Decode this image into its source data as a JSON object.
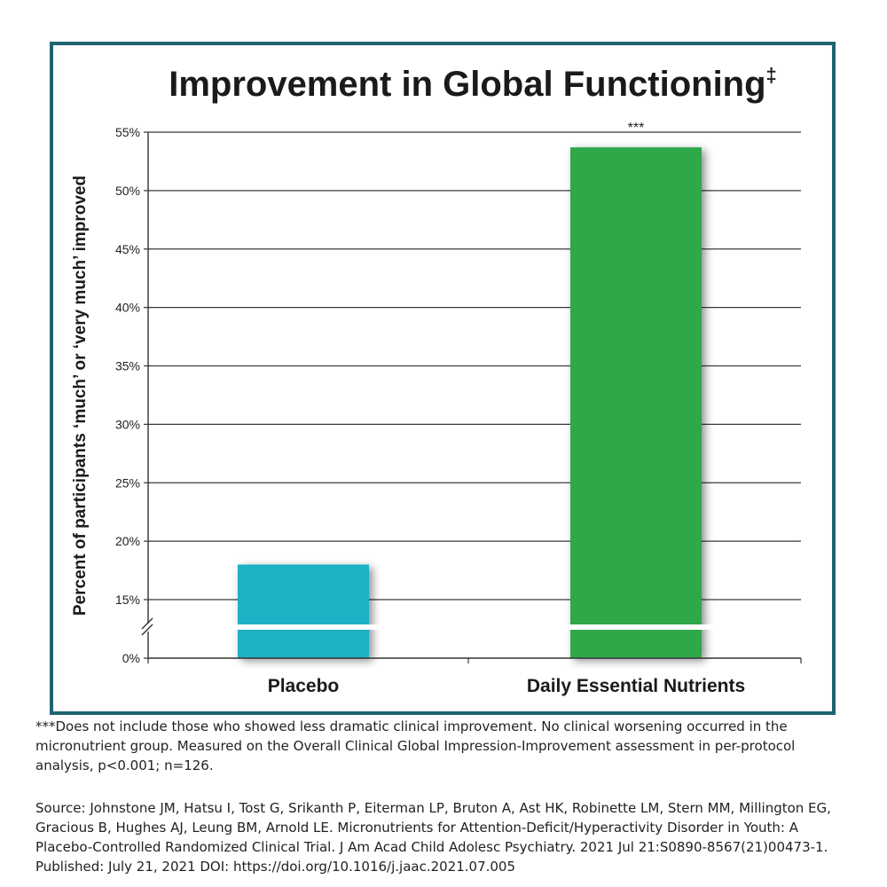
{
  "chart_data": {
    "type": "bar",
    "title": "Improvement in Global Functioning",
    "title_mark": "‡",
    "ylabel": "Percent of participants ‘much’ or ‘very much’ improved",
    "xlabel": "",
    "categories": [
      "Placebo",
      "Daily Essential Nutrients"
    ],
    "values": [
      18,
      53.7
    ],
    "colors": [
      "#1fb1c4",
      "#2ea84a"
    ],
    "bar_annotations": [
      "",
      "***"
    ],
    "y_ticks": [
      {
        "value": 0,
        "label": "0%"
      },
      {
        "value": 15,
        "label": "15%"
      },
      {
        "value": 20,
        "label": "20%"
      },
      {
        "value": 25,
        "label": "25%"
      },
      {
        "value": 30,
        "label": "30%"
      },
      {
        "value": 35,
        "label": "35%"
      },
      {
        "value": 40,
        "label": "40%"
      },
      {
        "value": 45,
        "label": "45%"
      },
      {
        "value": 50,
        "label": "50%"
      },
      {
        "value": 55,
        "label": "55%"
      }
    ],
    "ylim": [
      0,
      55
    ],
    "axis_break": true,
    "grid": true,
    "frame_color": "#1f6470"
  },
  "footnote": "***Does not include those who showed less dramatic clinical improvement. No clinical worsening occurred in the micronutrient group. Measured on the Overall Clinical Global Impression-Improvement assessment in per-protocol analysis, p<0.001; n=126.",
  "source": "Source: Johnstone JM, Hatsu I, Tost G, Srikanth P, Eiterman LP, Bruton A, Ast HK, Robinette LM, Stern MM, Millington EG, Gracious B, Hughes AJ, Leung BM, Arnold LE. Micronutrients for Attention-Deficit/Hyperactivity Disorder in Youth: A Placebo-Controlled Randomized Clinical Trial. J Am Acad Child Adolesc Psychiatry. 2021 Jul 21:S0890-8567(21)00473-1. Published: July 21, 2021 DOI: https://doi.org/10.1016/j.jaac.2021.07.005"
}
